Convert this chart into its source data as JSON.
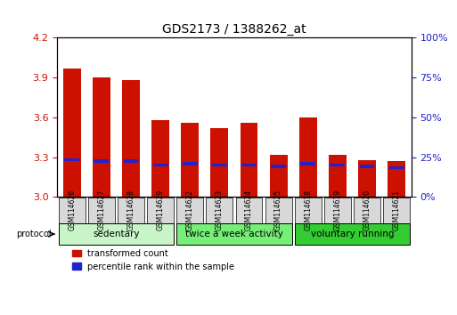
{
  "title": "GDS2173 / 1388262_at",
  "samples": [
    "GSM114626",
    "GSM114627",
    "GSM114628",
    "GSM114629",
    "GSM114622",
    "GSM114623",
    "GSM114624",
    "GSM114625",
    "GSM114618",
    "GSM114619",
    "GSM114620",
    "GSM114621"
  ],
  "transformed_count": [
    3.97,
    3.9,
    3.88,
    3.58,
    3.56,
    3.52,
    3.56,
    3.32,
    3.6,
    3.32,
    3.28,
    3.27
  ],
  "percentile_rank": [
    3.28,
    3.27,
    3.27,
    3.24,
    3.25,
    3.24,
    3.24,
    3.23,
    3.25,
    3.24,
    3.23,
    3.22
  ],
  "bar_bottom": 3.0,
  "ylim_left": [
    3.0,
    4.2
  ],
  "ylim_right": [
    0,
    100
  ],
  "yticks_left": [
    3.0,
    3.3,
    3.6,
    3.9,
    4.2
  ],
  "yticks_right": [
    0,
    25,
    50,
    75,
    100
  ],
  "ytick_labels_right": [
    "0%",
    "25%",
    "50%",
    "75%",
    "100%"
  ],
  "bar_color": "#CC1100",
  "blue_color": "#2222CC",
  "bar_width": 0.6,
  "groups": [
    {
      "label": "sedentary",
      "indices": [
        0,
        1,
        2,
        3
      ],
      "color": "#aaffaa"
    },
    {
      "label": "twice a week activity",
      "indices": [
        4,
        5,
        6,
        7
      ],
      "color": "#66ee66"
    },
    {
      "label": "voluntary running",
      "indices": [
        8,
        9,
        10,
        11
      ],
      "color": "#22dd22"
    }
  ],
  "group_light_color": "#ccffcc",
  "group_mid_color": "#88ee88",
  "group_dark_color": "#33cc33",
  "xlabel_color": "#CC1100",
  "ylabel_left_color": "#CC1100",
  "ylabel_right_color": "#2222CC",
  "grid_color": "black",
  "tick_label_color_left": "#CC1100",
  "tick_label_color_right": "#2222CC"
}
